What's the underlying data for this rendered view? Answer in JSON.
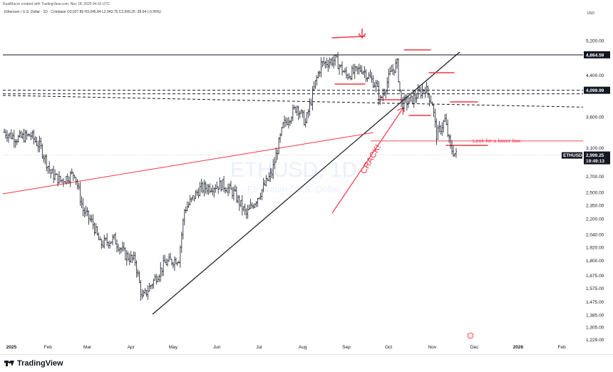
{
  "header": {
    "attribution": "RealMacro created with TradingView.com, Nov 18, 2025 04:10 UTC",
    "symbol_line": "Ethereum / U.S. Dollar · 1D · Coinbase  O3,027.89  H3,045.84  L2,943.75  C2,999.25  -28.64 (-0.95%)",
    "currency": "USD"
  },
  "footer": {
    "brand": "TradingView"
  },
  "colors": {
    "candle": "#131722",
    "drawing_red": "#f23645",
    "trendline": "#131722",
    "tag_bg": "#131722",
    "tag_text": "#ffffff"
  },
  "chart_data": {
    "type": "bar",
    "scale": "log",
    "ylim": [
      1229,
      5600
    ],
    "y_ticks": [
      "5,200.00",
      "4,400.00",
      "3,600.00",
      "3,100.00",
      "2,700.00",
      "2,500.00",
      "2,350.00",
      "2,200.00",
      "2,040.00",
      "1,920.00",
      "1,800.00",
      "1,675.00",
      "1,575.00",
      "1,475.00",
      "1,385.00",
      "1,305.00",
      "1,229.00"
    ],
    "y_tick_values": [
      5200,
      4400,
      3600,
      3100,
      2700,
      2500,
      2350,
      2200,
      2040,
      1920,
      1800,
      1675,
      1575,
      1475,
      1385,
      1305,
      1229
    ],
    "x_ticks": [
      "2025",
      "Feb",
      "Mar",
      "Apr",
      "May",
      "Jun",
      "Jul",
      "Aug",
      "Sep",
      "Oct",
      "Nov",
      "Dec",
      "2026",
      "Feb"
    ],
    "x_tick_days": [
      0,
      31,
      59,
      90,
      120,
      151,
      181,
      212,
      243,
      273,
      304,
      334,
      365,
      396
    ],
    "xlim_days": [
      0,
      410
    ],
    "watermark": {
      "symbol": "ETHUSD, 1D",
      "name": "Ethereum / U.S. Dollar"
    },
    "price_levels": [
      {
        "label": "4,864.59",
        "value": 4864.59
      },
      {
        "label": "4,099.99",
        "value": 4099.99
      }
    ],
    "last_price": {
      "symbol": "ETHUSD",
      "price": "2,999.25",
      "countdown": "19:49:13",
      "value": 2999.25
    },
    "annotations": [
      {
        "text": "CRACK!",
        "color": "#f23645"
      },
      {
        "text": "Look for a lower low.",
        "color": "#f23645"
      }
    ],
    "ohlc_anchors": [
      [
        "2025-01-01",
        0,
        3350
      ],
      [
        "2025-01-10",
        9,
        3250
      ],
      [
        "2025-01-20",
        19,
        3300
      ],
      [
        "2025-01-27",
        26,
        3100
      ],
      [
        "2025-02-03",
        33,
        2750
      ],
      [
        "2025-02-10",
        40,
        2650
      ],
      [
        "2025-02-20",
        50,
        2750
      ],
      [
        "2025-02-26",
        56,
        2300
      ],
      [
        "2025-03-05",
        63,
        2150
      ],
      [
        "2025-03-10",
        68,
        1950
      ],
      [
        "2025-03-20",
        78,
        2000
      ],
      [
        "2025-03-28",
        86,
        1850
      ],
      [
        "2025-04-04",
        93,
        1800
      ],
      [
        "2025-04-09",
        98,
        1500
      ],
      [
        "2025-04-15",
        104,
        1600
      ],
      [
        "2025-04-25",
        114,
        1780
      ],
      [
        "2025-05-05",
        124,
        1820
      ],
      [
        "2025-05-09",
        128,
        2300
      ],
      [
        "2025-05-20",
        139,
        2550
      ],
      [
        "2025-06-05",
        155,
        2600
      ],
      [
        "2025-06-13",
        163,
        2500
      ],
      [
        "2025-06-22",
        172,
        2250
      ],
      [
        "2025-06-30",
        180,
        2450
      ],
      [
        "2025-07-10",
        190,
        2750
      ],
      [
        "2025-07-18",
        198,
        3450
      ],
      [
        "2025-07-28",
        208,
        3800
      ],
      [
        "2025-08-03",
        214,
        3500
      ],
      [
        "2025-08-10",
        221,
        4250
      ],
      [
        "2025-08-14",
        225,
        4650
      ],
      [
        "2025-08-24",
        235,
        4750
      ],
      [
        "2025-09-01",
        243,
        4400
      ],
      [
        "2025-09-12",
        254,
        4550
      ],
      [
        "2025-09-22",
        264,
        4200
      ],
      [
        "2025-09-25",
        267,
        3900
      ],
      [
        "2025-10-03",
        275,
        4500
      ],
      [
        "2025-10-07",
        279,
        4650
      ],
      [
        "2025-10-10",
        282,
        3850
      ],
      [
        "2025-10-17",
        289,
        3900
      ],
      [
        "2025-10-27",
        299,
        4150
      ],
      [
        "2025-11-01",
        304,
        3850
      ],
      [
        "2025-11-04",
        307,
        3300
      ],
      [
        "2025-11-10",
        313,
        3550
      ],
      [
        "2025-11-14",
        317,
        3100
      ],
      [
        "2025-11-18",
        321,
        3000
      ]
    ]
  }
}
